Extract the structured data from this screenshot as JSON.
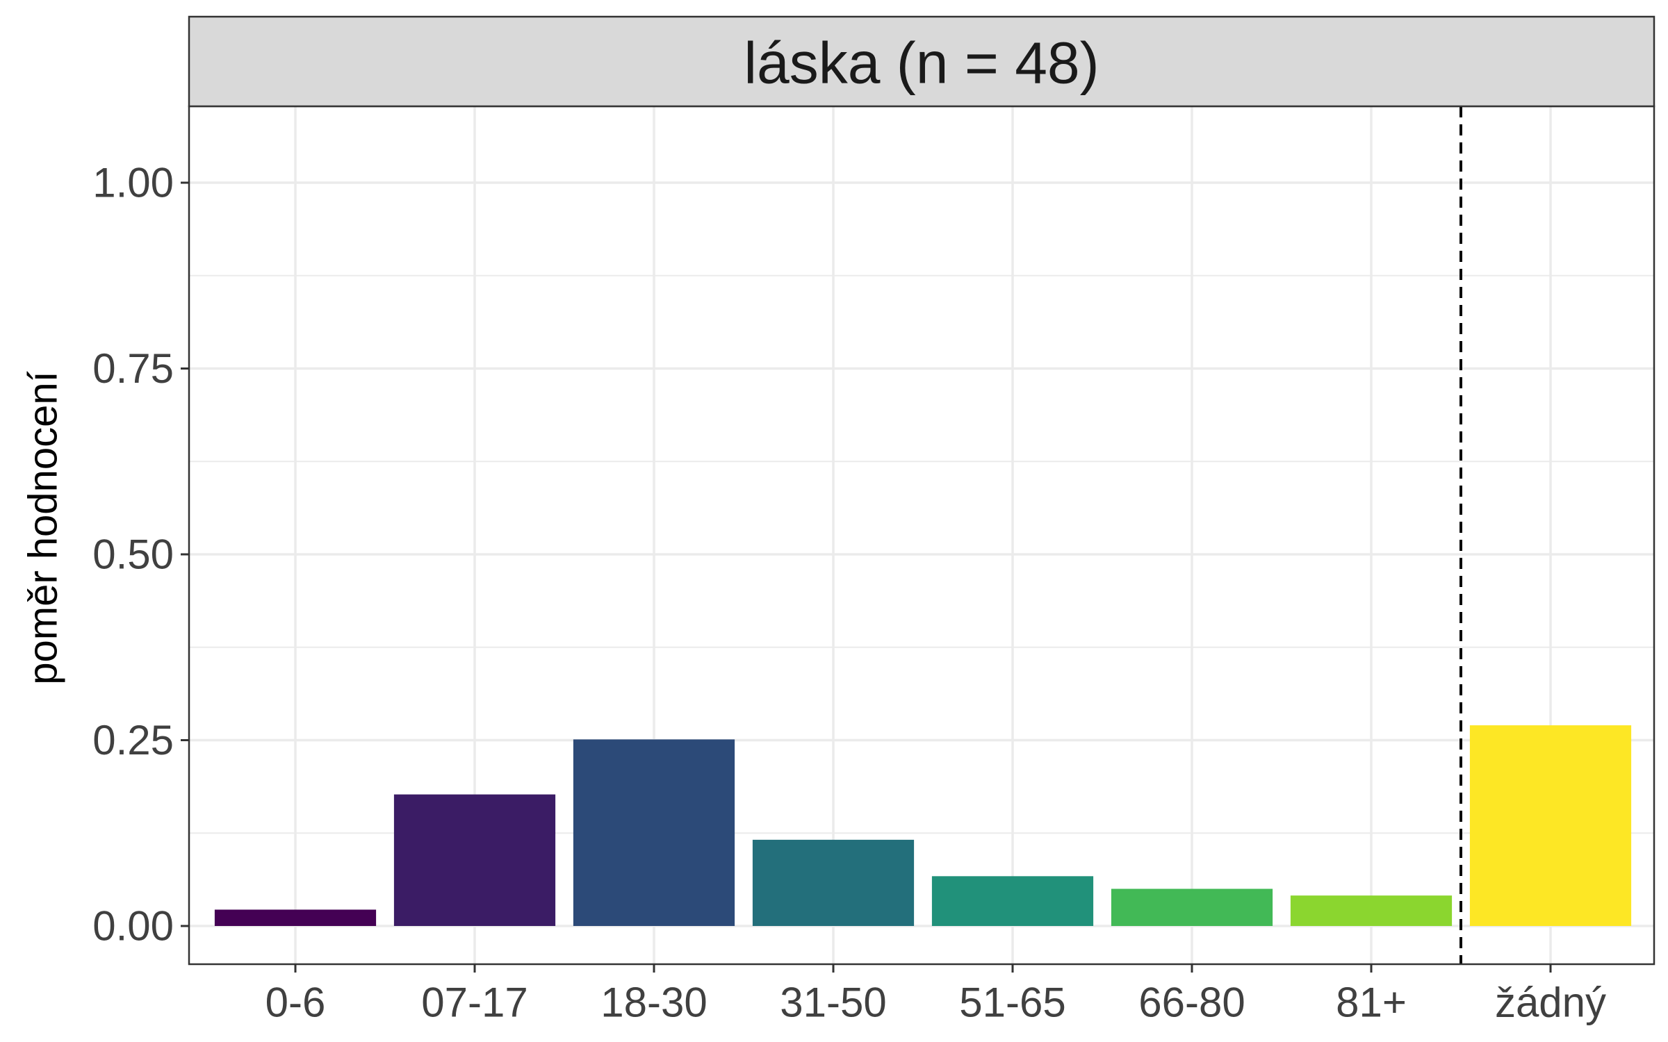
{
  "chart_data": {
    "type": "bar",
    "facet_title": "láska (n = 48)",
    "xlabel": "",
    "ylabel": "poměr hodnocení",
    "ylim": [
      0,
      1.1
    ],
    "yticks": [
      "0.00",
      "0.25",
      "0.50",
      "0.75",
      "1.00"
    ],
    "categories": [
      "0-6",
      "07-17",
      "18-30",
      "31-50",
      "51-65",
      "66-80",
      "81+",
      "žádný"
    ],
    "values": [
      0.022,
      0.177,
      0.251,
      0.116,
      0.067,
      0.05,
      0.041,
      0.27
    ],
    "colors": [
      "#440154",
      "#3B1C65",
      "#2C4A78",
      "#236F7B",
      "#21917A",
      "#42B956",
      "#8BD62F",
      "#FDE725"
    ],
    "separator": {
      "style": "dashed",
      "between": [
        "81+",
        "žádný"
      ]
    },
    "grid": true,
    "legend": "none"
  }
}
